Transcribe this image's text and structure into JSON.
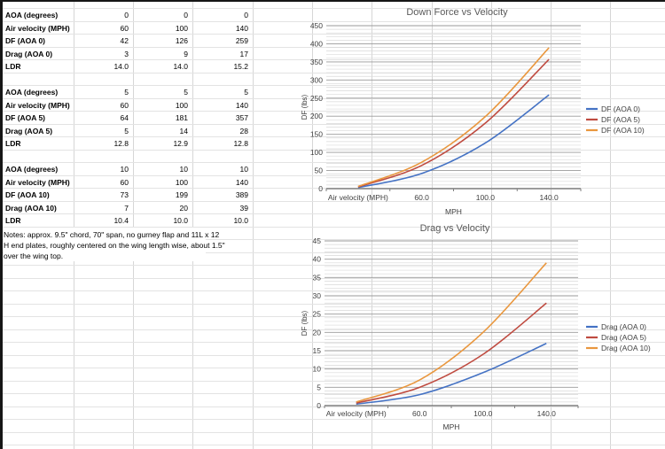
{
  "spreadsheet": {
    "blocks": [
      {
        "start_row": 0,
        "rows": [
          {
            "label": "AOA (degrees)",
            "values": [
              "0",
              "0",
              "0"
            ]
          },
          {
            "label": "Air velocity (MPH)",
            "values": [
              "60",
              "100",
              "140"
            ]
          },
          {
            "label": "DF (AOA 0)",
            "values": [
              "42",
              "126",
              "259"
            ]
          },
          {
            "label": "Drag (AOA 0)",
            "values": [
              "3",
              "9",
              "17"
            ]
          },
          {
            "label": "LDR",
            "values": [
              "14.0",
              "14.0",
              "15.2"
            ]
          }
        ]
      },
      {
        "start_row": 6,
        "rows": [
          {
            "label": "AOA (degrees)",
            "values": [
              "5",
              "5",
              "5"
            ]
          },
          {
            "label": "Air velocity (MPH)",
            "values": [
              "60",
              "100",
              "140"
            ]
          },
          {
            "label": "DF (AOA 5)",
            "values": [
              "64",
              "181",
              "357"
            ]
          },
          {
            "label": "Drag (AOA 5)",
            "values": [
              "5",
              "14",
              "28"
            ]
          },
          {
            "label": "LDR",
            "values": [
              "12.8",
              "12.9",
              "12.8"
            ]
          }
        ]
      },
      {
        "start_row": 12,
        "rows": [
          {
            "label": "AOA (degrees)",
            "values": [
              "10",
              "10",
              "10"
            ]
          },
          {
            "label": "Air velocity (MPH)",
            "values": [
              "60",
              "100",
              "140"
            ]
          },
          {
            "label": "DF (AOA 10)",
            "values": [
              "73",
              "199",
              "389"
            ]
          },
          {
            "label": "Drag (AOA 10)",
            "values": [
              "7",
              "20",
              "39"
            ]
          },
          {
            "label": "LDR",
            "values": [
              "10.4",
              "10.0",
              "10.0"
            ]
          }
        ]
      }
    ],
    "notes_lines": [
      "Notes: approx. 9.5\" chord, 70\" span, no gurney flap and 11L x 12",
      "H end plates, roughly centered on the wing length wise, about 1.5\"",
      "over the wing top."
    ]
  },
  "chart_data": [
    {
      "type": "line",
      "title": "Down Force vs Velocity",
      "categories": [
        "Air velocity (MPH)",
        "60.0",
        "100.0",
        "140.0"
      ],
      "series": [
        {
          "name": "DF (AOA 0)",
          "color": "#4472c4",
          "values": [
            3,
            42,
            126,
            259
          ]
        },
        {
          "name": "DF (AOA 5)",
          "color": "#bf4b40",
          "values": [
            5,
            64,
            181,
            357
          ]
        },
        {
          "name": "DF (AOA 10)",
          "color": "#e9973e",
          "values": [
            6,
            73,
            199,
            389
          ]
        }
      ],
      "xlabel": "MPH",
      "ylabel": "DF (lbs)",
      "ylim": [
        0,
        450
      ],
      "ytick_step": 50,
      "yminor_step": 10,
      "legend_position": "right",
      "grid": "minor-horizontal"
    },
    {
      "type": "line",
      "title": "Drag vs Velocity",
      "categories": [
        "Air velocity (MPH)",
        "60.0",
        "100.0",
        "140.0"
      ],
      "series": [
        {
          "name": "Drag (AOA 0)",
          "color": "#4472c4",
          "values": [
            0.4,
            3,
            9,
            17
          ]
        },
        {
          "name": "Drag (AOA 5)",
          "color": "#bf4b40",
          "values": [
            0.7,
            5,
            14,
            28
          ]
        },
        {
          "name": "Drag (AOA 10)",
          "color": "#e9973e",
          "values": [
            1,
            7,
            20,
            39
          ]
        }
      ],
      "xlabel": "MPH",
      "ylabel": "DF (lbs)",
      "ylim": [
        0,
        45
      ],
      "ytick_step": 5,
      "yminor_step": 1,
      "legend_position": "right",
      "grid": "minor-horizontal"
    }
  ]
}
